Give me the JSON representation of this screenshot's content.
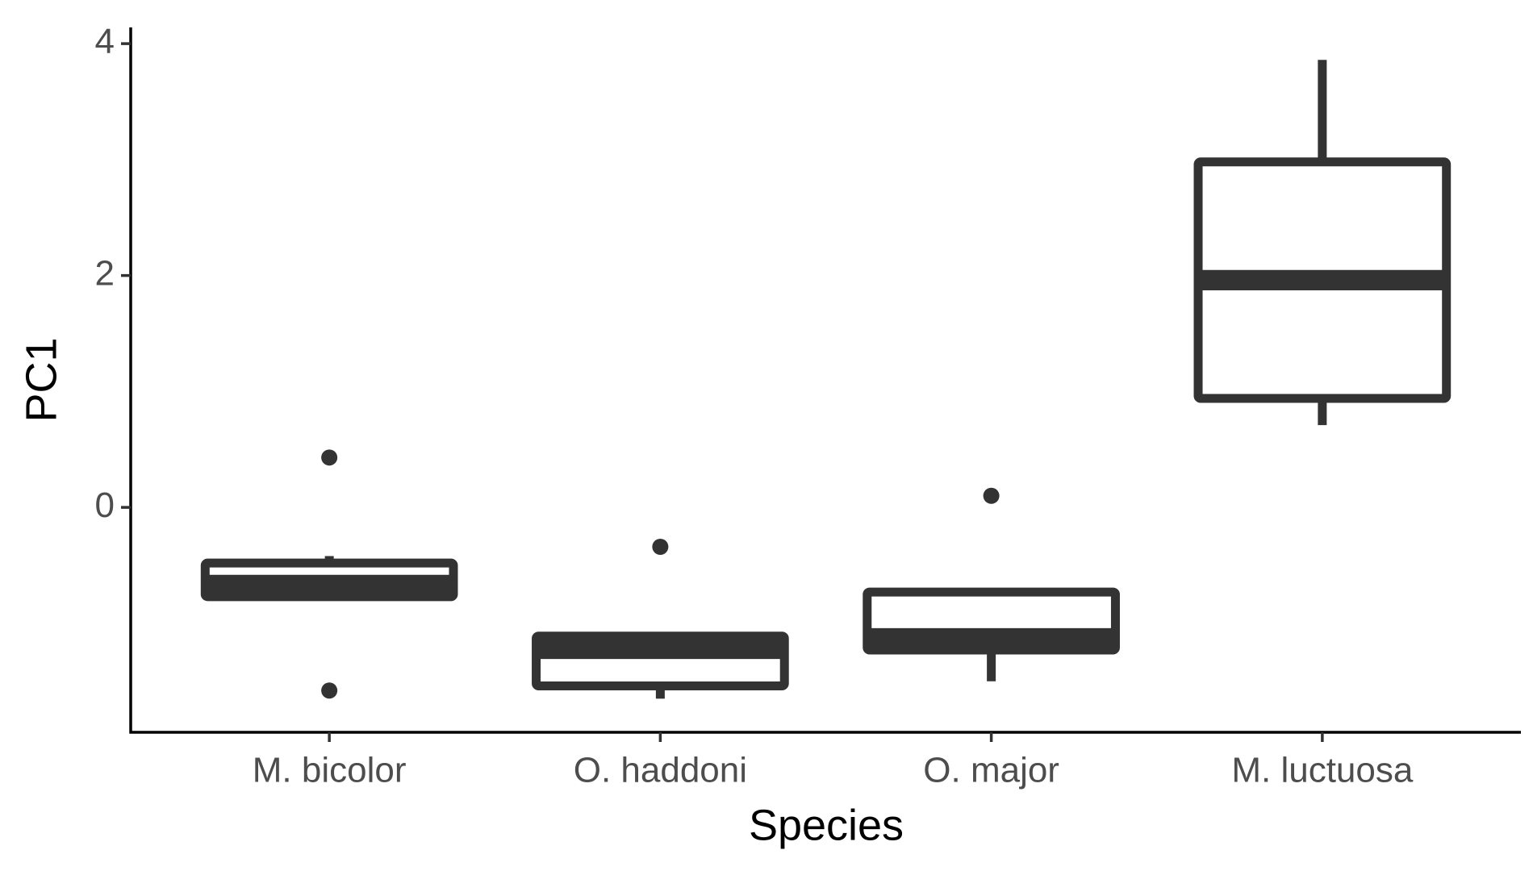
{
  "chart_data": {
    "type": "box",
    "x_label": "Species",
    "y_label": "PC1",
    "categories": [
      "M. bicolor",
      "O. haddoni",
      "O. major",
      "M. luctuosa"
    ],
    "boxes": [
      {
        "whisker_low": -0.77,
        "q1": -0.77,
        "median": -0.67,
        "q3": -0.48,
        "whisker_high": -0.42,
        "outliers": [
          0.43,
          -1.58
        ]
      },
      {
        "whisker_low": -1.65,
        "q1": -1.54,
        "median": -1.22,
        "q3": -1.11,
        "whisker_high": -1.11,
        "outliers": [
          -0.34
        ]
      },
      {
        "whisker_low": -1.5,
        "q1": -1.23,
        "median": -1.13,
        "q3": -0.73,
        "whisker_high": -0.73,
        "outliers": [
          0.1
        ]
      },
      {
        "whisker_low": 0.71,
        "q1": 0.94,
        "median": 1.96,
        "q3": 2.98,
        "whisker_high": 3.86,
        "outliers": []
      }
    ],
    "color": "#333333",
    "ylim": [
      -1.94,
      4.14
    ],
    "yticks": [
      0,
      2,
      4
    ]
  }
}
